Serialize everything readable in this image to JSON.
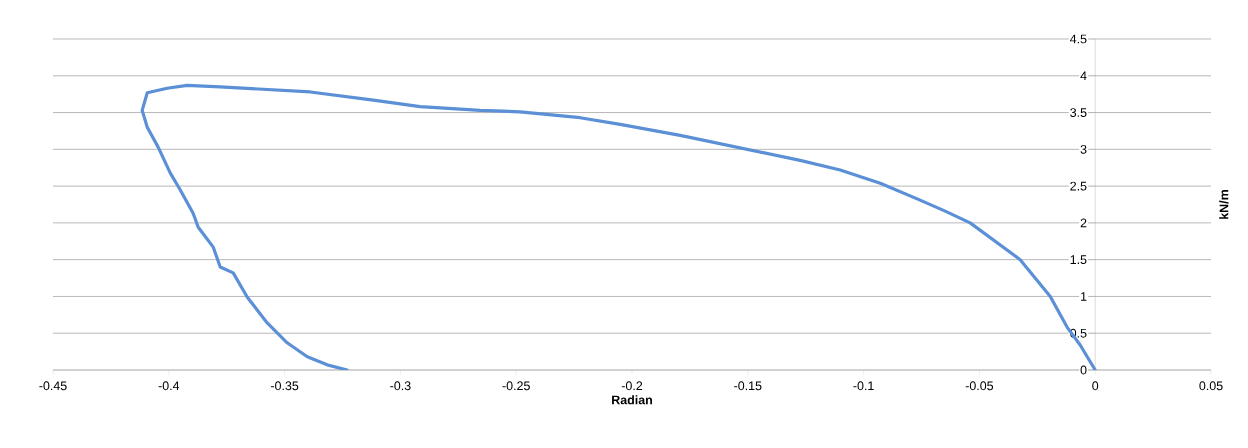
{
  "chart_data": {
    "type": "line",
    "xlabel": "Radian",
    "ylabel": "kN/m",
    "x": [
      0,
      -0.0065,
      -0.0121,
      -0.0194,
      -0.0324,
      -0.054,
      -0.0648,
      -0.0756,
      -0.0928,
      -0.1101,
      -0.1274,
      -0.1533,
      -0.1792,
      -0.2051,
      -0.2224,
      -0.2483,
      -0.2655,
      -0.2915,
      -0.3117,
      -0.3389,
      -0.3778,
      -0.3921,
      -0.4007,
      -0.4093,
      -0.4115,
      -0.4093,
      -0.4046,
      -0.3994,
      -0.3951,
      -0.3895,
      -0.3873,
      -0.3808,
      -0.3778,
      -0.3722,
      -0.3661,
      -0.3575,
      -0.3489,
      -0.3402,
      -0.3316,
      -0.323
    ],
    "series": [
      {
        "color": "#5b8fd6",
        "values": [
          0,
          0.34,
          0.58,
          1.0,
          1.5,
          2.0,
          2.16,
          2.31,
          2.54,
          2.72,
          2.85,
          3.02,
          3.19,
          3.34,
          3.43,
          3.51,
          3.53,
          3.58,
          3.67,
          3.78,
          3.85,
          3.87,
          3.83,
          3.77,
          3.53,
          3.3,
          3.03,
          2.68,
          2.45,
          2.13,
          1.94,
          1.67,
          1.4,
          1.32,
          0.99,
          0.64,
          0.37,
          0.18,
          0.07,
          0
        ]
      }
    ],
    "xlim": [
      -0.45,
      0.05
    ],
    "xticks": [
      -0.45,
      -0.4,
      -0.35,
      -0.3,
      -0.25,
      -0.2,
      -0.15,
      -0.1,
      -0.05,
      0,
      0.05
    ],
    "ylim": [
      0,
      4.5
    ],
    "yticks": [
      0,
      0.5,
      1,
      1.5,
      2,
      2.5,
      3,
      3.5,
      4,
      4.5
    ],
    "grid": "y",
    "marker": "none",
    "line_style": "solid"
  }
}
